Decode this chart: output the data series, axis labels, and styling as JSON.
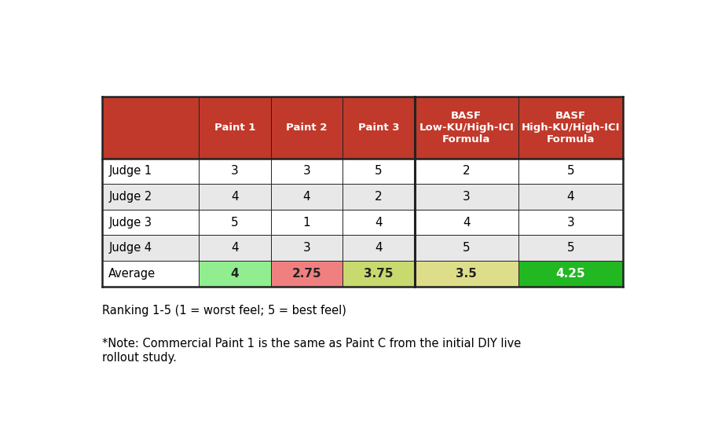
{
  "col_headers": [
    "Paint 1",
    "Paint 2",
    "Paint 3",
    "BASF\nLow-KU/High-ICI\nFormula",
    "BASF\nHigh-KU/High-ICI\nFormula"
  ],
  "row_headers": [
    "Judge 1",
    "Judge 2",
    "Judge 3",
    "Judge 4",
    "Average"
  ],
  "data": [
    [
      3,
      3,
      5,
      2,
      5
    ],
    [
      4,
      4,
      2,
      3,
      4
    ],
    [
      5,
      1,
      4,
      4,
      3
    ],
    [
      4,
      3,
      4,
      5,
      5
    ],
    [
      4,
      2.75,
      3.75,
      3.5,
      4.25
    ]
  ],
  "avg_display": [
    "4",
    "2.75",
    "3.75",
    "3.5",
    "4.25"
  ],
  "header_bg": "#c0392b",
  "header_fg": "#ffffff",
  "row_bg_odd": "#ffffff",
  "row_bg_even": "#e8e8e8",
  "avg_colors": [
    "#90ee90",
    "#f08080",
    "#c8d96e",
    "#dede8a",
    "#22b822"
  ],
  "avg_text_colors": [
    "#222222",
    "#222222",
    "#222222",
    "#222222",
    "#ffffff"
  ],
  "grid_line_color": "#222222",
  "note1": "Ranking 1-5 (1 = worst feel; 5 = best feel)",
  "note2": "*Note: Commercial Paint 1 is the same as Paint C from the initial DIY live\nrollout study.",
  "fig_bg": "#ffffff",
  "col_props": [
    1.35,
    1.0,
    1.0,
    1.0,
    1.45,
    1.45
  ]
}
